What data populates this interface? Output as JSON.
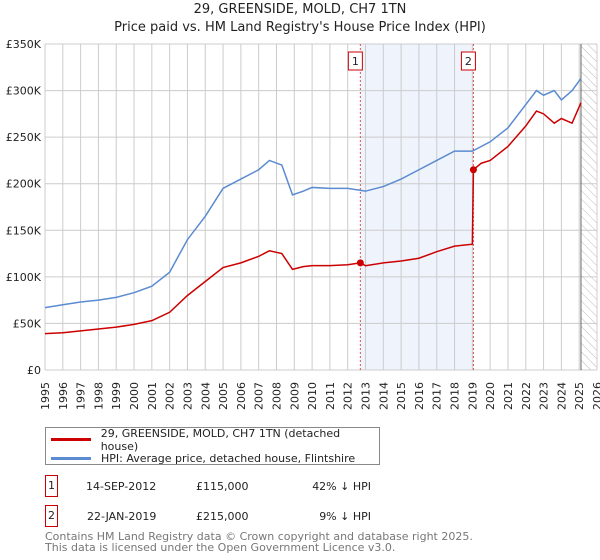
{
  "chart_data": {
    "type": "line",
    "title": "29, GREENSIDE, MOLD, CH7 1TN",
    "subtitle": "Price paid vs. HM Land Registry's House Price Index (HPI)",
    "xlim": [
      1995,
      2026
    ],
    "ylim": [
      0,
      350000
    ],
    "yticks": [
      "£0",
      "£50K",
      "£100K",
      "£150K",
      "£200K",
      "£250K",
      "£300K",
      "£350K"
    ],
    "xticks": [
      "1995",
      "1996",
      "1997",
      "1998",
      "1999",
      "2000",
      "2001",
      "2002",
      "2003",
      "2004",
      "2005",
      "2006",
      "2007",
      "2008",
      "2009",
      "2010",
      "2011",
      "2012",
      "2013",
      "2014",
      "2015",
      "2016",
      "2017",
      "2018",
      "2019",
      "2020",
      "2021",
      "2022",
      "2023",
      "2024",
      "2025",
      "2026"
    ],
    "series": [
      {
        "name": "29, GREENSIDE, MOLD, CH7 1TN (detached house)",
        "color": "#cc0000",
        "x": [
          1995,
          1996,
          1997,
          1998,
          1999,
          2000,
          2001,
          2002,
          2003,
          2004,
          2005,
          2006,
          2007,
          2007.6,
          2008.3,
          2008.9,
          2009.5,
          2010,
          2011,
          2012,
          2012.7,
          2013,
          2014,
          2015,
          2016,
          2017,
          2018,
          2019.0,
          2019.06,
          2019.5,
          2020,
          2021,
          2022,
          2022.6,
          2023,
          2023.6,
          2024,
          2024.6,
          2025.1
        ],
        "y": [
          39000,
          40000,
          42000,
          44000,
          46000,
          49000,
          53000,
          62000,
          80000,
          95000,
          110000,
          115000,
          122000,
          128000,
          125000,
          108000,
          111000,
          112000,
          112000,
          113000,
          115000,
          112000,
          115000,
          117000,
          120000,
          127000,
          133000,
          135000,
          215000,
          222000,
          225000,
          240000,
          262000,
          278000,
          275000,
          265000,
          270000,
          265000,
          287000
        ]
      },
      {
        "name": "HPI: Average price, detached house, Flintshire",
        "color": "#5b8bd0",
        "x": [
          1995,
          1996,
          1997,
          1998,
          1999,
          2000,
          2001,
          2002,
          2003,
          2004,
          2005,
          2006,
          2007,
          2007.6,
          2008.3,
          2008.9,
          2009.5,
          2010,
          2011,
          2012,
          2013,
          2014,
          2015,
          2016,
          2017,
          2018,
          2019,
          2020,
          2021,
          2022,
          2022.6,
          2023,
          2023.6,
          2024,
          2024.6,
          2025.1
        ],
        "y": [
          67000,
          70000,
          73000,
          75000,
          78000,
          83000,
          90000,
          105000,
          140000,
          165000,
          195000,
          205000,
          215000,
          225000,
          220000,
          188000,
          192000,
          196000,
          195000,
          195000,
          192000,
          197000,
          205000,
          215000,
          225000,
          235000,
          235000,
          245000,
          260000,
          285000,
          300000,
          295000,
          300000,
          290000,
          300000,
          313000
        ]
      }
    ],
    "sales": [
      {
        "label": "1",
        "x": 2012.71
      },
      {
        "label": "2",
        "x": 2019.06
      }
    ],
    "forecast_start": 2025.1
  },
  "legend": [
    "29, GREENSIDE, MOLD, CH7 1TN (detached house)",
    "HPI: Average price, detached house, Flintshire"
  ],
  "transactions": [
    {
      "num": "1",
      "date": "14-SEP-2012",
      "price": "£115,000",
      "hpi": "42% ↓ HPI"
    },
    {
      "num": "2",
      "date": "22-JAN-2019",
      "price": "£215,000",
      "hpi": "9% ↓ HPI"
    }
  ],
  "footer": [
    "Contains HM Land Registry data © Crown copyright and database right 2025.",
    "This data is licensed under the Open Government Licence v3.0."
  ]
}
